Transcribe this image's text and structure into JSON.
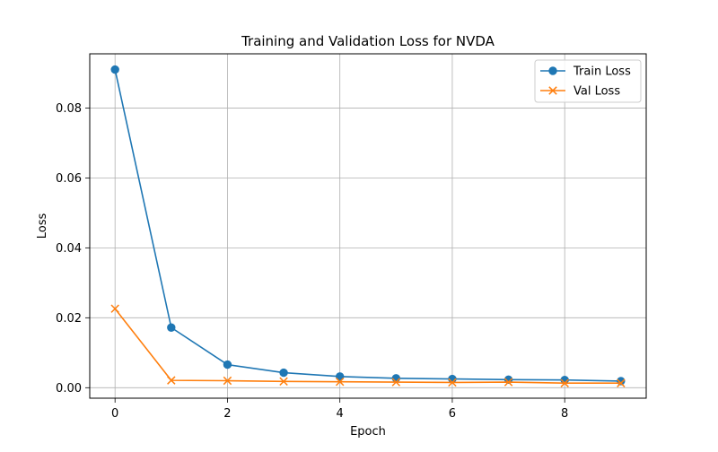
{
  "chart_data": {
    "type": "line",
    "title": "Training and Validation Loss for NVDA",
    "xlabel": "Epoch",
    "ylabel": "Loss",
    "xlim": [
      -0.45,
      9.45
    ],
    "ylim": [
      -0.003,
      0.0955
    ],
    "x_ticks": [
      0,
      2,
      4,
      6,
      8
    ],
    "x_tick_labels": [
      "0",
      "2",
      "4",
      "6",
      "8"
    ],
    "y_ticks": [
      0.0,
      0.02,
      0.04,
      0.06,
      0.08
    ],
    "y_tick_labels": [
      "0.00",
      "0.02",
      "0.04",
      "0.06",
      "0.08"
    ],
    "grid": true,
    "legend_position": "top-right",
    "x": [
      0,
      1,
      2,
      3,
      4,
      5,
      6,
      7,
      8,
      9
    ],
    "series": [
      {
        "name": "Train Loss",
        "color": "#1f77b4",
        "marker": "circle",
        "values": [
          0.091,
          0.0172,
          0.0066,
          0.0043,
          0.0032,
          0.0027,
          0.0025,
          0.0023,
          0.0022,
          0.0019
        ]
      },
      {
        "name": "Val Loss",
        "color": "#ff7f0e",
        "marker": "x",
        "values": [
          0.0226,
          0.0021,
          0.002,
          0.0018,
          0.0017,
          0.0016,
          0.0015,
          0.0016,
          0.0013,
          0.0013
        ]
      }
    ]
  }
}
